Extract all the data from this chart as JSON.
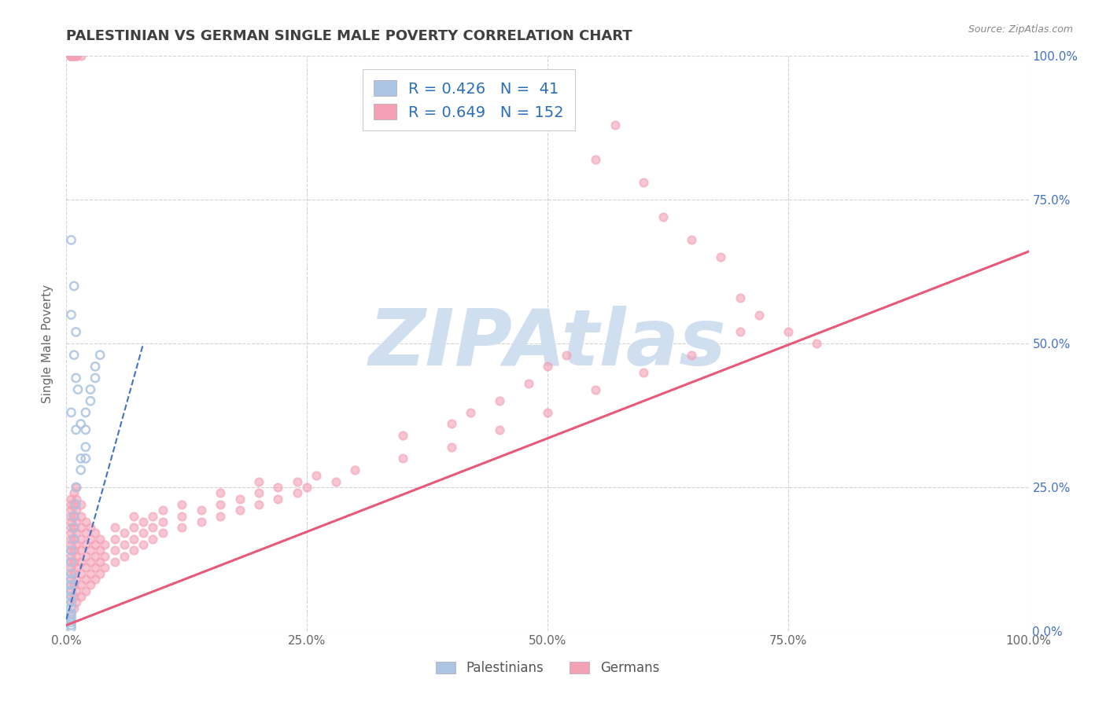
{
  "title": "PALESTINIAN VS GERMAN SINGLE MALE POVERTY CORRELATION CHART",
  "source": "Source: ZipAtlas.com",
  "ylabel": "Single Male Poverty",
  "legend_labels": [
    "Palestinians",
    "Germans"
  ],
  "legend_r": [
    "R = 0.426",
    "R = 0.649"
  ],
  "legend_n": [
    "N =  41",
    "N = 152"
  ],
  "blue_color": "#aac4e2",
  "pink_color": "#f4a0b5",
  "blue_line_color": "#4472c4",
  "pink_line_color": "#e85878",
  "title_color": "#404040",
  "legend_text_color": "#2a6ebb",
  "watermark_color": "#d0dff0",
  "background_color": "#ffffff",
  "grid_color": "#c8c8c8",
  "right_axis_color": "#4472c4",
  "blue_scatter": [
    [
      0.005,
      0.005
    ],
    [
      0.005,
      0.01
    ],
    [
      0.005,
      0.015
    ],
    [
      0.005,
      0.02
    ],
    [
      0.005,
      0.025
    ],
    [
      0.005,
      0.03
    ],
    [
      0.005,
      0.04
    ],
    [
      0.005,
      0.05
    ],
    [
      0.005,
      0.06
    ],
    [
      0.005,
      0.07
    ],
    [
      0.005,
      0.08
    ],
    [
      0.005,
      0.09
    ],
    [
      0.005,
      0.1
    ],
    [
      0.005,
      0.12
    ],
    [
      0.005,
      0.14
    ],
    [
      0.008,
      0.16
    ],
    [
      0.008,
      0.18
    ],
    [
      0.008,
      0.2
    ],
    [
      0.01,
      0.22
    ],
    [
      0.01,
      0.25
    ],
    [
      0.015,
      0.28
    ],
    [
      0.015,
      0.3
    ],
    [
      0.02,
      0.32
    ],
    [
      0.02,
      0.35
    ],
    [
      0.02,
      0.38
    ],
    [
      0.025,
      0.4
    ],
    [
      0.025,
      0.42
    ],
    [
      0.03,
      0.44
    ],
    [
      0.03,
      0.46
    ],
    [
      0.035,
      0.48
    ],
    [
      0.005,
      0.55
    ],
    [
      0.008,
      0.48
    ],
    [
      0.012,
      0.42
    ],
    [
      0.01,
      0.35
    ],
    [
      0.015,
      0.36
    ],
    [
      0.02,
      0.3
    ],
    [
      0.005,
      0.68
    ],
    [
      0.008,
      0.6
    ],
    [
      0.01,
      0.52
    ],
    [
      0.005,
      0.38
    ],
    [
      0.01,
      0.44
    ]
  ],
  "pink_scatter": [
    [
      0.005,
      0.03
    ],
    [
      0.005,
      0.05
    ],
    [
      0.005,
      0.06
    ],
    [
      0.005,
      0.07
    ],
    [
      0.005,
      0.08
    ],
    [
      0.005,
      0.09
    ],
    [
      0.005,
      0.1
    ],
    [
      0.005,
      0.11
    ],
    [
      0.005,
      0.12
    ],
    [
      0.005,
      0.13
    ],
    [
      0.005,
      0.14
    ],
    [
      0.005,
      0.15
    ],
    [
      0.005,
      0.16
    ],
    [
      0.005,
      0.17
    ],
    [
      0.005,
      0.18
    ],
    [
      0.005,
      0.19
    ],
    [
      0.005,
      0.2
    ],
    [
      0.005,
      0.21
    ],
    [
      0.005,
      0.22
    ],
    [
      0.005,
      0.23
    ],
    [
      0.008,
      0.04
    ],
    [
      0.008,
      0.06
    ],
    [
      0.008,
      0.08
    ],
    [
      0.008,
      0.1
    ],
    [
      0.008,
      0.12
    ],
    [
      0.008,
      0.14
    ],
    [
      0.008,
      0.16
    ],
    [
      0.008,
      0.18
    ],
    [
      0.008,
      0.2
    ],
    [
      0.008,
      0.22
    ],
    [
      0.008,
      0.24
    ],
    [
      0.01,
      0.05
    ],
    [
      0.01,
      0.07
    ],
    [
      0.01,
      0.09
    ],
    [
      0.01,
      0.11
    ],
    [
      0.01,
      0.13
    ],
    [
      0.01,
      0.15
    ],
    [
      0.01,
      0.17
    ],
    [
      0.01,
      0.19
    ],
    [
      0.01,
      0.21
    ],
    [
      0.01,
      0.23
    ],
    [
      0.01,
      0.25
    ],
    [
      0.015,
      0.06
    ],
    [
      0.015,
      0.08
    ],
    [
      0.015,
      0.1
    ],
    [
      0.015,
      0.12
    ],
    [
      0.015,
      0.14
    ],
    [
      0.015,
      0.16
    ],
    [
      0.015,
      0.18
    ],
    [
      0.015,
      0.2
    ],
    [
      0.015,
      0.22
    ],
    [
      0.02,
      0.07
    ],
    [
      0.02,
      0.09
    ],
    [
      0.02,
      0.11
    ],
    [
      0.02,
      0.13
    ],
    [
      0.02,
      0.15
    ],
    [
      0.02,
      0.17
    ],
    [
      0.02,
      0.19
    ],
    [
      0.025,
      0.08
    ],
    [
      0.025,
      0.1
    ],
    [
      0.025,
      0.12
    ],
    [
      0.025,
      0.14
    ],
    [
      0.025,
      0.16
    ],
    [
      0.025,
      0.18
    ],
    [
      0.03,
      0.09
    ],
    [
      0.03,
      0.11
    ],
    [
      0.03,
      0.13
    ],
    [
      0.03,
      0.15
    ],
    [
      0.03,
      0.17
    ],
    [
      0.035,
      0.1
    ],
    [
      0.035,
      0.12
    ],
    [
      0.035,
      0.14
    ],
    [
      0.035,
      0.16
    ],
    [
      0.04,
      0.11
    ],
    [
      0.04,
      0.13
    ],
    [
      0.04,
      0.15
    ],
    [
      0.05,
      0.12
    ],
    [
      0.05,
      0.14
    ],
    [
      0.05,
      0.16
    ],
    [
      0.05,
      0.18
    ],
    [
      0.06,
      0.13
    ],
    [
      0.06,
      0.15
    ],
    [
      0.06,
      0.17
    ],
    [
      0.07,
      0.14
    ],
    [
      0.07,
      0.16
    ],
    [
      0.07,
      0.18
    ],
    [
      0.07,
      0.2
    ],
    [
      0.08,
      0.15
    ],
    [
      0.08,
      0.17
    ],
    [
      0.08,
      0.19
    ],
    [
      0.09,
      0.16
    ],
    [
      0.09,
      0.18
    ],
    [
      0.09,
      0.2
    ],
    [
      0.1,
      0.17
    ],
    [
      0.1,
      0.19
    ],
    [
      0.1,
      0.21
    ],
    [
      0.12,
      0.18
    ],
    [
      0.12,
      0.2
    ],
    [
      0.12,
      0.22
    ],
    [
      0.14,
      0.19
    ],
    [
      0.14,
      0.21
    ],
    [
      0.16,
      0.2
    ],
    [
      0.16,
      0.22
    ],
    [
      0.16,
      0.24
    ],
    [
      0.18,
      0.21
    ],
    [
      0.18,
      0.23
    ],
    [
      0.2,
      0.22
    ],
    [
      0.2,
      0.24
    ],
    [
      0.2,
      0.26
    ],
    [
      0.22,
      0.23
    ],
    [
      0.22,
      0.25
    ],
    [
      0.24,
      0.24
    ],
    [
      0.24,
      0.26
    ],
    [
      0.25,
      0.25
    ],
    [
      0.26,
      0.27
    ],
    [
      0.28,
      0.26
    ],
    [
      0.3,
      0.28
    ],
    [
      0.35,
      0.3
    ],
    [
      0.4,
      0.32
    ],
    [
      0.45,
      0.35
    ],
    [
      0.5,
      0.38
    ],
    [
      0.55,
      0.42
    ],
    [
      0.6,
      0.45
    ],
    [
      0.65,
      0.48
    ],
    [
      0.7,
      0.52
    ],
    [
      0.55,
      0.82
    ],
    [
      0.57,
      0.88
    ],
    [
      0.6,
      0.78
    ],
    [
      0.62,
      0.72
    ],
    [
      0.65,
      0.68
    ],
    [
      0.68,
      0.65
    ],
    [
      0.7,
      0.58
    ],
    [
      0.72,
      0.55
    ],
    [
      0.75,
      0.52
    ],
    [
      0.78,
      0.5
    ],
    [
      0.5,
      0.46
    ],
    [
      0.52,
      0.48
    ],
    [
      0.45,
      0.4
    ],
    [
      0.48,
      0.43
    ],
    [
      0.4,
      0.36
    ],
    [
      0.42,
      0.38
    ],
    [
      0.35,
      0.34
    ],
    [
      0.005,
      1.0
    ],
    [
      0.005,
      1.0
    ],
    [
      0.005,
      1.0
    ],
    [
      0.005,
      1.0
    ],
    [
      0.005,
      1.0
    ],
    [
      0.005,
      1.0
    ],
    [
      0.008,
      1.0
    ],
    [
      0.008,
      1.0
    ],
    [
      0.008,
      1.0
    ],
    [
      0.01,
      1.0
    ],
    [
      0.01,
      1.0
    ],
    [
      0.015,
      1.0
    ]
  ],
  "blue_trend_x": [
    0.0,
    0.08
  ],
  "blue_trend_y": [
    0.02,
    0.5
  ],
  "pink_trend_x": [
    0.0,
    1.0
  ],
  "pink_trend_y": [
    0.01,
    0.66
  ],
  "xlim": [
    0.0,
    1.0
  ],
  "ylim": [
    0.0,
    1.0
  ],
  "xticks": [
    0.0,
    0.25,
    0.5,
    0.75,
    1.0
  ],
  "xtick_labels": [
    "0.0%",
    "25.0%",
    "50.0%",
    "75.0%",
    "100.0%"
  ],
  "ytick_labels_right": [
    "0.0%",
    "25.0%",
    "50.0%",
    "75.0%",
    "100.0%"
  ],
  "scatter_size": 55,
  "scatter_alpha": 0.6
}
